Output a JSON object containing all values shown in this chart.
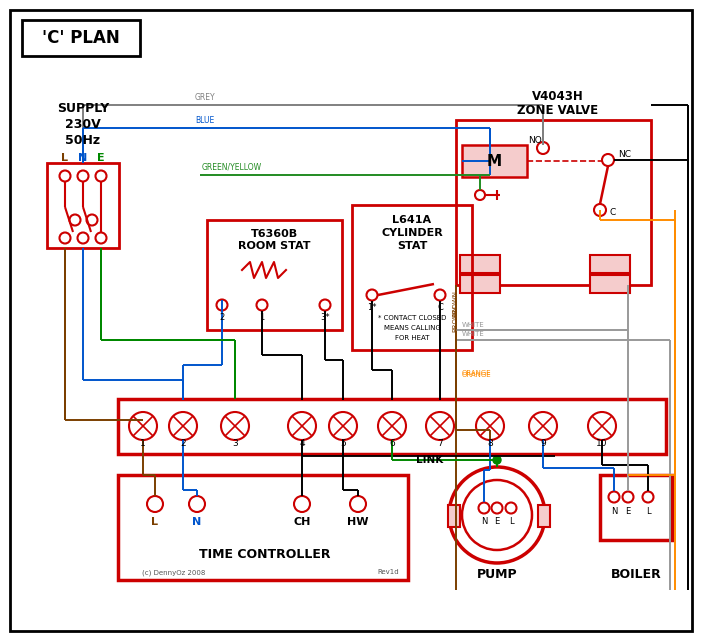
{
  "title": "'C' PLAN",
  "bg_color": "#ffffff",
  "red": "#cc0000",
  "wire_grey": "#808080",
  "wire_blue": "#0055cc",
  "wire_green": "#008800",
  "wire_brown": "#7B3F00",
  "wire_black": "#000000",
  "wire_orange": "#FF8C00",
  "wire_gy": "#228B22",
  "supply_text": [
    "SUPPLY",
    "230V",
    "50Hz"
  ],
  "supply_lne": [
    "L",
    "N",
    "E"
  ],
  "zone_valve_title": [
    "V4043H",
    "ZONE VALVE"
  ],
  "room_stat_title": [
    "T6360B",
    "ROOM STAT"
  ],
  "cyl_stat_title": [
    "L641A",
    "CYLINDER",
    "STAT"
  ],
  "terminal_labels": [
    "1",
    "2",
    "3",
    "4",
    "5",
    "6",
    "7",
    "8",
    "9",
    "10"
  ],
  "time_ctrl_labels": [
    "L",
    "N",
    "CH",
    "HW"
  ],
  "time_ctrl_title": "TIME CONTROLLER",
  "pump_labels": [
    "N",
    "E",
    "L"
  ],
  "pump_title": "PUMP",
  "boiler_labels": [
    "N",
    "E",
    "L"
  ],
  "boiler_title": "BOILER",
  "link_label": "LINK",
  "contact_note": [
    "* CONTACT CLOSED",
    "MEANS CALLING",
    "FOR HEAT"
  ],
  "copyright": "(c) DennyOz 2008",
  "rev": "Rev1d"
}
